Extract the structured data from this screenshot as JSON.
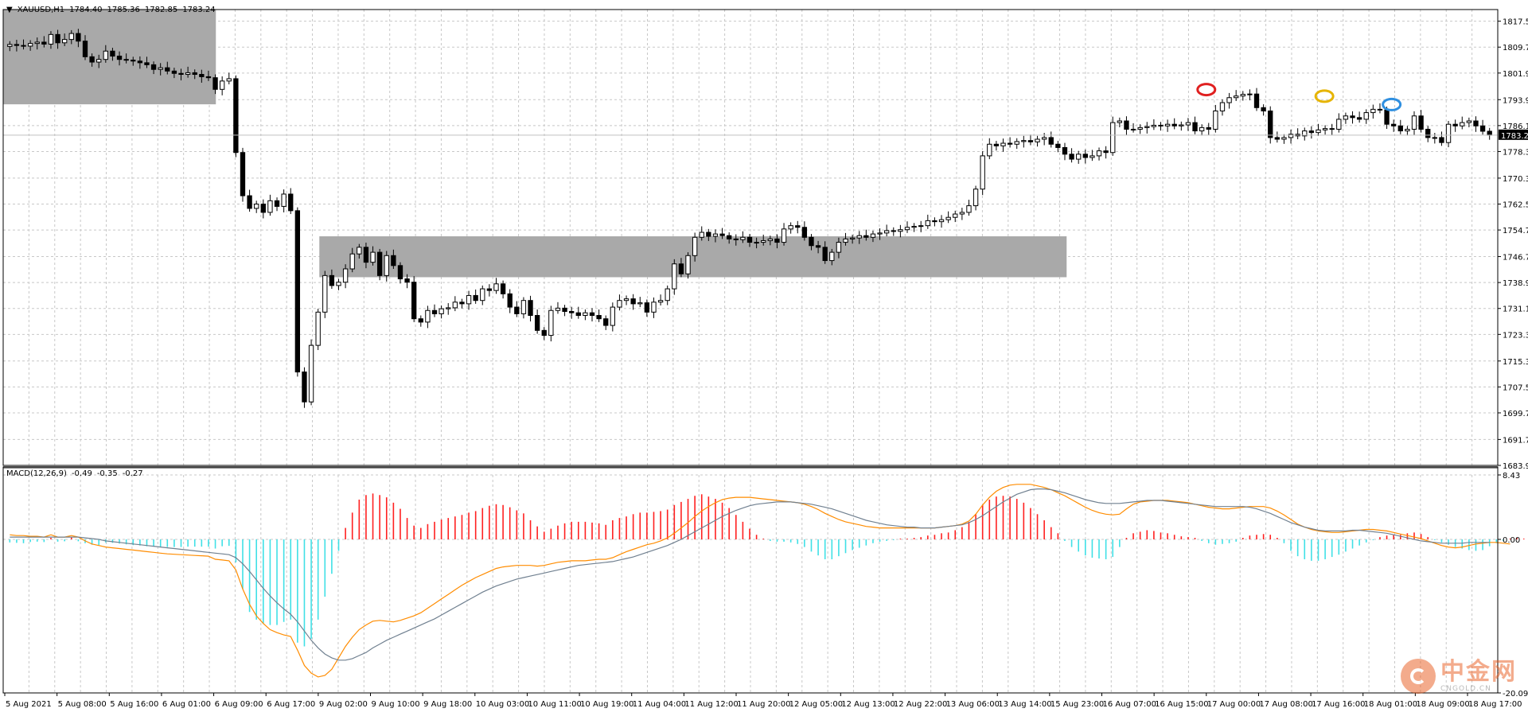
{
  "chart_data": [
    {
      "type": "candlestick",
      "symbol": "XAUUSD,H1",
      "ohlc_header": [
        "1784.40",
        "1785.36",
        "1782.85",
        "1783.24"
      ],
      "ylim": [
        1683.9,
        1821.0
      ],
      "y_ticks": [
        "1817.50",
        "1809.70",
        "1801.90",
        "1793.90",
        "1786.10",
        "1778.30",
        "1770.30",
        "1762.50",
        "1754.70",
        "1746.70",
        "1738.90",
        "1731.10",
        "1723.30",
        "1715.30",
        "1707.50",
        "1699.70",
        "1691.70",
        "1683.90"
      ],
      "current_price": "1783.24",
      "x_labels": [
        "5 Aug 2021",
        "5 Aug 08:00",
        "5 Aug 16:00",
        "6 Aug 01:00",
        "6 Aug 09:00",
        "6 Aug 17:00",
        "9 Aug 02:00",
        "9 Aug 10:00",
        "9 Aug 18:00",
        "10 Aug 03:00",
        "10 Aug 11:00",
        "10 Aug 19:00",
        "11 Aug 04:00",
        "11 Aug 12:00",
        "11 Aug 20:00",
        "12 Aug 05:00",
        "12 Aug 13:00",
        "12 Aug 22:00",
        "13 Aug 06:00",
        "13 Aug 14:00",
        "15 Aug 23:00",
        "16 Aug 07:00",
        "16 Aug 15:00",
        "17 Aug 00:00",
        "17 Aug 08:00",
        "17 Aug 16:00",
        "18 Aug 01:00",
        "18 Aug 09:00",
        "18 Aug 17:00"
      ],
      "closes": [
        1810.5,
        1810.2,
        1810.0,
        1810.8,
        1811.2,
        1810.6,
        1813.5,
        1811.0,
        1812.0,
        1813.8,
        1811.5,
        1806.8,
        1805.2,
        1806.0,
        1808.5,
        1807.0,
        1806.0,
        1805.8,
        1805.5,
        1805.0,
        1804.4,
        1803.0,
        1803.5,
        1802.5,
        1801.8,
        1801.5,
        1802.0,
        1801.5,
        1800.8,
        1800.5,
        1797.0,
        1799.5,
        1800.2,
        1778.0,
        1765.0,
        1761.2,
        1762.5,
        1760.0,
        1763.5,
        1761.8,
        1765.5,
        1760.5,
        1712.0,
        1703.0,
        1720.0,
        1730.0,
        1741.0,
        1738.0,
        1739.0,
        1743.0,
        1747.5,
        1749.5,
        1745.0,
        1748.0,
        1741.0,
        1747.0,
        1744.0,
        1740.0,
        1739.0,
        1728.0,
        1727.0,
        1730.5,
        1729.5,
        1731.0,
        1731.3,
        1733.0,
        1732.5,
        1735.0,
        1733.5,
        1737.0,
        1736.5,
        1738.5,
        1735.5,
        1731.5,
        1729.5,
        1733.5,
        1729.0,
        1724.5,
        1723.0,
        1730.5,
        1731.2,
        1730.2,
        1729.8,
        1729.0,
        1729.8,
        1729.0,
        1728.0,
        1726.0,
        1731.5,
        1733.5,
        1734.0,
        1732.5,
        1732.8,
        1730.0,
        1733.0,
        1733.5,
        1737.0,
        1744.5,
        1741.5,
        1747.0,
        1752.5,
        1754.0,
        1752.8,
        1753.5,
        1753.0,
        1752.0,
        1751.8,
        1752.5,
        1751.0,
        1751.0,
        1751.5,
        1752.0,
        1751.0,
        1755.0,
        1756.0,
        1755.5,
        1752.5,
        1750.0,
        1749.5,
        1745.5,
        1748.0,
        1751.0,
        1752.0,
        1752.3,
        1753.0,
        1752.5,
        1753.5,
        1753.8,
        1754.5,
        1754.3,
        1754.8,
        1755.5,
        1755.8,
        1756.0,
        1757.5,
        1757.2,
        1757.8,
        1758.5,
        1759.5,
        1760.0,
        1762.0,
        1767.0,
        1777.0,
        1780.5,
        1780.0,
        1780.8,
        1780.5,
        1781.3,
        1781.6,
        1781.2,
        1782.0,
        1782.5,
        1780.5,
        1779.5,
        1777.5,
        1776.0,
        1777.5,
        1776.5,
        1777.0,
        1778.5,
        1778.0,
        1787.0,
        1787.5,
        1785.0,
        1785.0,
        1785.5,
        1785.8,
        1786.2,
        1786.0,
        1786.5,
        1786.0,
        1786.3,
        1787.0,
        1784.5,
        1785.5,
        1785.0,
        1790.5,
        1793.0,
        1794.5,
        1795.0,
        1795.5,
        1795.6,
        1791.5,
        1790.5,
        1782.5,
        1782.0,
        1782.5,
        1783.5,
        1783.0,
        1784.5,
        1784.0,
        1784.8,
        1785.2,
        1785.0,
        1788.0,
        1789.0,
        1788.5,
        1788.0,
        1790.0,
        1791.0,
        1790.8,
        1786.5,
        1786.0,
        1784.5,
        1785.0,
        1789.0,
        1785.0,
        1782.5,
        1782.5,
        1781.0,
        1786.5,
        1786.0,
        1787.0,
        1787.5,
        1786.0,
        1784.4,
        1783.24
      ],
      "zones": [
        {
          "from": 0,
          "to": 0.37,
          "y_top": 1821.0,
          "y_bottom": 1792.5
        },
        {
          "from": 0.55,
          "to": 1.85,
          "y_top": 1752.8,
          "y_bottom": 1740.5
        }
      ],
      "markers": [
        {
          "price": 1795.5,
          "color": "#e02020",
          "at": 0.805
        },
        {
          "price": 1793.5,
          "color": "#e6b400",
          "at": 0.884
        },
        {
          "price": 1791.0,
          "color": "#2f8fe0",
          "at": 0.929
        }
      ]
    },
    {
      "type": "macd",
      "label": "MACD(12,26,9)",
      "values_header": [
        "-0.49",
        "-0.35",
        "-0.27"
      ],
      "ylim": [
        -20.09,
        8.43
      ],
      "y_ticks": [
        "8.43",
        "0.00",
        "-20.09"
      ],
      "histogram": [
        -0.4,
        -0.45,
        -0.5,
        -0.35,
        -0.3,
        -0.35,
        0.2,
        -0.3,
        -0.25,
        0.25,
        -0.25,
        -0.5,
        -0.7,
        -0.75,
        -0.4,
        -0.45,
        -0.55,
        -0.65,
        -0.75,
        -0.8,
        -0.9,
        -0.95,
        -0.95,
        -1.0,
        -1.0,
        -1.0,
        -0.95,
        -0.95,
        -0.95,
        -0.95,
        -1.2,
        -0.9,
        -0.85,
        -3.0,
        -6.5,
        -9.5,
        -10.5,
        -11.0,
        -11.2,
        -11.2,
        -10.8,
        -10.5,
        -13.5,
        -14.0,
        -13.0,
        -10.5,
        -7.5,
        -4.5,
        -1.5,
        1.5,
        3.5,
        5.2,
        5.8,
        6.0,
        5.8,
        5.5,
        4.8,
        4.0,
        2.8,
        1.8,
        1.5,
        2.0,
        2.3,
        2.6,
        2.8,
        3.0,
        3.2,
        3.5,
        3.7,
        4.1,
        4.4,
        4.6,
        4.5,
        4.2,
        3.8,
        3.4,
        2.5,
        1.7,
        1.0,
        1.4,
        1.8,
        2.1,
        2.3,
        2.3,
        2.3,
        2.2,
        2.1,
        1.9,
        2.5,
        2.8,
        3.0,
        3.3,
        3.5,
        3.5,
        3.6,
        3.7,
        3.9,
        4.5,
        4.9,
        5.3,
        5.7,
        5.9,
        5.6,
        5.3,
        4.8,
        4.1,
        3.2,
        2.3,
        1.4,
        0.6,
        0.1,
        -0.2,
        -0.3,
        -0.3,
        -0.4,
        -0.6,
        -1.0,
        -1.6,
        -2.1,
        -2.6,
        -2.6,
        -2.2,
        -1.8,
        -1.4,
        -1.1,
        -0.8,
        -0.5,
        -0.3,
        -0.2,
        -0.1,
        0.1,
        0.1,
        0.2,
        0.3,
        0.5,
        0.6,
        0.8,
        0.9,
        1.2,
        1.6,
        2.3,
        3.3,
        4.5,
        5.2,
        5.6,
        5.7,
        5.6,
        5.3,
        4.8,
        4.1,
        3.3,
        2.5,
        1.6,
        0.8,
        -0.2,
        -1.0,
        -1.6,
        -2.1,
        -2.4,
        -2.5,
        -2.6,
        -2.3,
        -1.0,
        0.2,
        0.8,
        1.0,
        1.2,
        1.1,
        0.9,
        0.8,
        0.6,
        0.4,
        0.3,
        0.2,
        -0.2,
        -0.5,
        -0.7,
        -0.6,
        -0.5,
        -0.3,
        0.2,
        0.5,
        0.6,
        0.7,
        0.6,
        0.2,
        -0.5,
        -1.5,
        -2.2,
        -2.6,
        -2.8,
        -2.8,
        -2.6,
        -2.3,
        -2.0,
        -1.6,
        -1.2,
        -0.8,
        -0.4,
        -0.1,
        0.3,
        0.5,
        0.6,
        0.6,
        0.8,
        0.9,
        0.7,
        0.3,
        -0.1,
        -0.4,
        -0.7,
        -1.0,
        -1.2,
        -1.4,
        -1.5,
        -1.4,
        -0.9,
        -0.5,
        -0.2,
        0.1,
        0.2,
        0.1,
        -0.1,
        -0.3
      ],
      "series": [
        {
          "role": "macd",
          "color": "#ff8c00",
          "values": [
            0.6,
            0.5,
            0.5,
            0.4,
            0.4,
            0.3,
            0.6,
            0.3,
            0.3,
            0.5,
            0.3,
            -0.2,
            -0.6,
            -0.8,
            -1.0,
            -1.1,
            -1.2,
            -1.3,
            -1.4,
            -1.5,
            -1.6,
            -1.7,
            -1.8,
            -1.9,
            -1.95,
            -2.0,
            -2.05,
            -2.1,
            -2.15,
            -2.2,
            -2.6,
            -2.7,
            -2.8,
            -4.0,
            -6.5,
            -8.5,
            -10.0,
            -11.0,
            -11.8,
            -12.2,
            -12.5,
            -12.7,
            -14.5,
            -16.5,
            -17.5,
            -18.0,
            -17.8,
            -17.0,
            -15.5,
            -14.0,
            -12.8,
            -11.8,
            -11.2,
            -10.7,
            -10.6,
            -10.7,
            -10.8,
            -10.6,
            -10.3,
            -10.0,
            -9.6,
            -9.0,
            -8.4,
            -7.8,
            -7.2,
            -6.6,
            -6.0,
            -5.5,
            -5.0,
            -4.6,
            -4.2,
            -3.8,
            -3.6,
            -3.5,
            -3.4,
            -3.4,
            -3.4,
            -3.5,
            -3.4,
            -3.2,
            -3.0,
            -2.9,
            -2.8,
            -2.8,
            -2.8,
            -2.7,
            -2.6,
            -2.6,
            -2.4,
            -2.0,
            -1.6,
            -1.3,
            -1.0,
            -0.7,
            -0.5,
            -0.2,
            0.2,
            0.8,
            1.5,
            2.2,
            3.0,
            3.7,
            4.3,
            4.8,
            5.2,
            5.4,
            5.5,
            5.5,
            5.5,
            5.4,
            5.3,
            5.2,
            5.1,
            5.0,
            4.9,
            4.8,
            4.6,
            4.3,
            3.9,
            3.4,
            3.0,
            2.6,
            2.3,
            2.1,
            1.9,
            1.7,
            1.6,
            1.5,
            1.5,
            1.5,
            1.5,
            1.5,
            1.5,
            1.5,
            1.5,
            1.5,
            1.6,
            1.7,
            1.8,
            2.0,
            2.4,
            3.3,
            4.5,
            5.5,
            6.3,
            6.8,
            7.1,
            7.2,
            7.2,
            7.2,
            7.0,
            6.8,
            6.5,
            6.1,
            5.7,
            5.2,
            4.7,
            4.2,
            3.8,
            3.5,
            3.3,
            3.2,
            3.3,
            4.0,
            4.6,
            4.9,
            5.0,
            5.1,
            5.1,
            5.1,
            5.0,
            4.9,
            4.8,
            4.6,
            4.4,
            4.2,
            4.1,
            4.0,
            4.0,
            4.1,
            4.2,
            4.3,
            4.3,
            4.3,
            4.1,
            3.7,
            3.2,
            2.6,
            2.0,
            1.6,
            1.3,
            1.1,
            1.0,
            0.9,
            0.9,
            1.0,
            1.1,
            1.2,
            1.3,
            1.3,
            1.2,
            1.1,
            0.9,
            0.7,
            0.5,
            0.3,
            0.1,
            -0.2,
            -0.5,
            -0.8,
            -1.0,
            -1.1,
            -1.0,
            -0.8,
            -0.6,
            -0.5,
            -0.4,
            -0.4,
            -0.5,
            -0.6
          ]
        },
        {
          "role": "signal",
          "color": "#708090",
          "values": [
            0.3,
            0.3,
            0.3,
            0.3,
            0.3,
            0.3,
            0.3,
            0.3,
            0.3,
            0.3,
            0.3,
            0.2,
            0.1,
            0.0,
            -0.2,
            -0.3,
            -0.4,
            -0.5,
            -0.6,
            -0.7,
            -0.8,
            -0.9,
            -1.0,
            -1.1,
            -1.2,
            -1.3,
            -1.4,
            -1.5,
            -1.6,
            -1.7,
            -1.8,
            -1.9,
            -2.0,
            -2.4,
            -3.2,
            -4.2,
            -5.3,
            -6.4,
            -7.4,
            -8.3,
            -9.1,
            -9.8,
            -10.8,
            -12.0,
            -13.2,
            -14.2,
            -15.0,
            -15.5,
            -15.8,
            -15.8,
            -15.6,
            -15.2,
            -14.8,
            -14.2,
            -13.7,
            -13.2,
            -12.8,
            -12.4,
            -12.0,
            -11.6,
            -11.2,
            -10.8,
            -10.4,
            -9.9,
            -9.4,
            -8.9,
            -8.4,
            -7.9,
            -7.4,
            -6.9,
            -6.5,
            -6.1,
            -5.8,
            -5.5,
            -5.2,
            -5.0,
            -4.8,
            -4.6,
            -4.4,
            -4.2,
            -4.0,
            -3.8,
            -3.6,
            -3.4,
            -3.3,
            -3.2,
            -3.1,
            -3.0,
            -2.9,
            -2.7,
            -2.5,
            -2.3,
            -2.0,
            -1.7,
            -1.4,
            -1.1,
            -0.8,
            -0.4,
            0.0,
            0.5,
            1.0,
            1.5,
            2.0,
            2.5,
            3.0,
            3.4,
            3.8,
            4.1,
            4.4,
            4.6,
            4.7,
            4.8,
            4.9,
            4.9,
            4.9,
            4.8,
            4.7,
            4.6,
            4.4,
            4.2,
            4.0,
            3.7,
            3.4,
            3.1,
            2.8,
            2.5,
            2.3,
            2.1,
            1.9,
            1.8,
            1.7,
            1.6,
            1.6,
            1.5,
            1.5,
            1.5,
            1.6,
            1.7,
            1.8,
            1.9,
            2.2,
            2.6,
            3.1,
            3.7,
            4.3,
            4.9,
            5.4,
            5.9,
            6.2,
            6.5,
            6.6,
            6.6,
            6.5,
            6.3,
            6.1,
            5.8,
            5.5,
            5.2,
            5.0,
            4.8,
            4.7,
            4.7,
            4.7,
            4.8,
            4.9,
            5.0,
            5.1,
            5.1,
            5.1,
            5.0,
            4.9,
            4.8,
            4.7,
            4.6,
            4.5,
            4.4,
            4.3,
            4.3,
            4.3,
            4.3,
            4.3,
            4.2,
            4.0,
            3.7,
            3.4,
            3.0,
            2.6,
            2.2,
            1.9,
            1.6,
            1.4,
            1.2,
            1.1,
            1.1,
            1.1,
            1.1,
            1.2,
            1.2,
            1.1,
            1.0,
            0.9,
            0.8,
            0.6,
            0.4,
            0.2,
            0.0,
            -0.2,
            -0.3,
            -0.4,
            -0.5,
            -0.5,
            -0.5,
            -0.5,
            -0.4,
            -0.4,
            -0.4,
            -0.4
          ]
        }
      ]
    }
  ],
  "watermark": {
    "cn": "中金网",
    "en": "CNGOLD.CN"
  }
}
